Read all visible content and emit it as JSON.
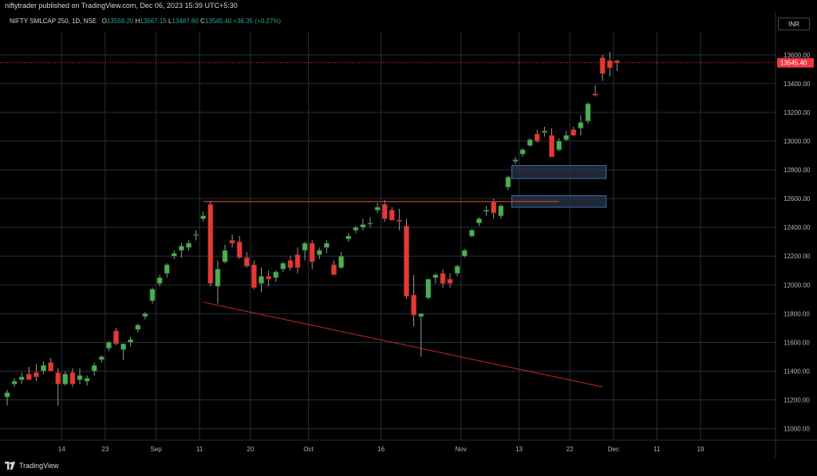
{
  "header": {
    "published": "niftytrader published on TradingView.com, Dec 06, 2023 15:39 UTC+5:30"
  },
  "legend": {
    "symbol": "NIFTY SMLCAP 250, 1D, NSE",
    "open_label": "O",
    "open": "13559.20",
    "high_label": "H",
    "high": "13567.15",
    "low_label": "L",
    "low": "13487.60",
    "close_label": "C",
    "close": "13545.40",
    "change": "+36.35 (+0.27%)"
  },
  "currency": "INR",
  "brand": {
    "name": "TradingView",
    "icon": "tradingview-logo-icon"
  },
  "colors": {
    "up": "#26a69a",
    "up_body": "#4caf50",
    "down": "#ef5350",
    "down_body": "#e53935",
    "grid": "#2a2e39",
    "trendline": "#c62828",
    "zone_fill": "#2a3446",
    "zone_border": "#3d6fb6",
    "last_price": "#f23645"
  },
  "chart_data": {
    "type": "candlestick",
    "title": "",
    "ylim": [
      10920,
      13760
    ],
    "y_ticks": [
      11000,
      11200,
      11400,
      11600,
      11800,
      12000,
      12200,
      12400,
      12600,
      12800,
      13000,
      13200,
      13400,
      13600
    ],
    "y_tick_labels": [
      "11000.00",
      "11200.00",
      "11400.00",
      "11600.00",
      "11800.00",
      "12000.00",
      "12200.00",
      "12400.00",
      "12600.00",
      "12800.00",
      "13000.00",
      "13200.00",
      "13400.00",
      "13600.00"
    ],
    "x_tick_labels": [
      {
        "label": "14",
        "index": 7.5
      },
      {
        "label": "23",
        "index": 13.5
      },
      {
        "label": "Sep",
        "index": 20.5
      },
      {
        "label": "11",
        "index": 26.5
      },
      {
        "label": "20",
        "index": 33.5
      },
      {
        "label": "Oct",
        "index": 41.5
      },
      {
        "label": "16",
        "index": 51.5
      },
      {
        "label": "Nov",
        "index": 62.5
      },
      {
        "label": "13",
        "index": 70.5
      },
      {
        "label": "22",
        "index": 77.5
      },
      {
        "label": "Dec",
        "index": 83.5
      },
      {
        "label": "11",
        "index": 89.5
      },
      {
        "label": "19",
        "index": 95.5
      }
    ],
    "grid": true,
    "last_price": 13545.4,
    "last_price_label": "13545.40",
    "candles": [
      [
        11220,
        11270,
        11160,
        11250
      ],
      [
        11310,
        11350,
        11290,
        11330
      ],
      [
        11340,
        11390,
        11310,
        11360
      ],
      [
        11380,
        11430,
        11360,
        11340
      ],
      [
        11390,
        11450,
        11330,
        11360
      ],
      [
        11400,
        11470,
        11380,
        11440
      ],
      [
        11460,
        11490,
        11420,
        11400
      ],
      [
        11390,
        11420,
        11160,
        11310
      ],
      [
        11310,
        11400,
        11300,
        11380
      ],
      [
        11390,
        11420,
        11290,
        11310
      ],
      [
        11340,
        11420,
        11310,
        11370
      ],
      [
        11330,
        11370,
        11300,
        11350
      ],
      [
        11400,
        11460,
        11370,
        11440
      ],
      [
        11480,
        11510,
        11460,
        11500
      ],
      [
        11560,
        11610,
        11540,
        11600
      ],
      [
        11680,
        11700,
        11580,
        11590
      ],
      [
        11550,
        11580,
        11480,
        11590
      ],
      [
        11600,
        11640,
        11570,
        11620
      ],
      [
        11690,
        11730,
        11670,
        11720
      ],
      [
        11780,
        11810,
        11760,
        11800
      ],
      [
        11890,
        11980,
        11870,
        11970
      ],
      [
        12010,
        12070,
        11990,
        12050
      ],
      [
        12080,
        12150,
        12050,
        12140
      ],
      [
        12200,
        12240,
        12180,
        12220
      ],
      [
        12240,
        12290,
        12190,
        12270
      ],
      [
        12260,
        12310,
        12240,
        12290
      ],
      [
        12350,
        12380,
        12310,
        12350
      ],
      [
        12460,
        12510,
        12440,
        12480
      ],
      [
        12560,
        12580,
        11990,
        12010
      ],
      [
        11990,
        12170,
        11870,
        12110
      ],
      [
        12160,
        12280,
        12150,
        12240
      ],
      [
        12310,
        12350,
        12260,
        12290
      ],
      [
        12300,
        12340,
        12180,
        12190
      ],
      [
        12190,
        12230,
        12120,
        12130
      ],
      [
        12140,
        12170,
        11970,
        11980
      ],
      [
        12010,
        12120,
        11950,
        12060
      ],
      [
        12060,
        12100,
        11990,
        12040
      ],
      [
        12050,
        12100,
        12020,
        12090
      ],
      [
        12110,
        12160,
        12090,
        12150
      ],
      [
        12170,
        12200,
        12100,
        12120
      ],
      [
        12210,
        12260,
        12080,
        12120
      ],
      [
        12240,
        12300,
        12170,
        12290
      ],
      [
        12290,
        12310,
        12110,
        12160
      ],
      [
        12210,
        12260,
        12180,
        12240
      ],
      [
        12260,
        12310,
        12220,
        12290
      ],
      [
        12140,
        12170,
        12080,
        12070
      ],
      [
        12120,
        12230,
        12110,
        12200
      ],
      [
        12320,
        12360,
        12300,
        12340
      ],
      [
        12380,
        12410,
        12360,
        12400
      ],
      [
        12400,
        12460,
        12380,
        12420
      ],
      [
        12430,
        12470,
        12400,
        12430
      ],
      [
        12520,
        12570,
        12500,
        12540
      ],
      [
        12560,
        12590,
        12440,
        12460
      ],
      [
        12520,
        12540,
        12470,
        12450
      ],
      [
        12450,
        12530,
        12380,
        12440
      ],
      [
        12410,
        12460,
        11900,
        11920
      ],
      [
        11930,
        12070,
        11710,
        11790
      ],
      [
        11780,
        11800,
        11500,
        11800
      ],
      [
        11910,
        12030,
        11900,
        12040
      ],
      [
        12050,
        12080,
        12010,
        12070
      ],
      [
        12080,
        12110,
        11980,
        12010
      ],
      [
        12040,
        12080,
        11980,
        12010
      ],
      [
        12080,
        12140,
        12060,
        12130
      ],
      [
        12200,
        12250,
        12190,
        12240
      ],
      [
        12340,
        12390,
        12330,
        12380
      ],
      [
        12430,
        12470,
        12410,
        12460
      ],
      [
        12510,
        12550,
        12480,
        12520
      ],
      [
        12580,
        12600,
        12460,
        12500
      ],
      [
        12480,
        12560,
        12460,
        12550
      ],
      [
        12680,
        12760,
        12660,
        12750
      ],
      [
        12860,
        12890,
        12840,
        12870
      ],
      [
        12910,
        12950,
        12890,
        12940
      ],
      [
        12970,
        13020,
        12960,
        13010
      ],
      [
        13050,
        13080,
        12990,
        13000
      ],
      [
        13060,
        13100,
        13030,
        13070
      ],
      [
        13040,
        13090,
        12900,
        12890
      ],
      [
        12940,
        13020,
        12930,
        13000
      ],
      [
        13010,
        13070,
        13000,
        13040
      ],
      [
        13080,
        13100,
        13040,
        13040
      ],
      [
        13090,
        13180,
        13040,
        13130
      ],
      [
        13140,
        13270,
        13120,
        13260
      ],
      [
        13330,
        13390,
        13310,
        13320
      ],
      [
        13580,
        13600,
        13420,
        13470
      ],
      [
        13560,
        13620,
        13450,
        13510
      ],
      [
        13559.2,
        13567.15,
        13487.6,
        13545.4
      ]
    ],
    "annotations": {
      "resistance_line": {
        "from_index": 27,
        "to_index": 76,
        "price": 12580
      },
      "trendline": {
        "from_index": 27,
        "from_price": 11880,
        "to_index": 82,
        "to_price": 11290
      },
      "zones": [
        {
          "from_index": 69.5,
          "to_index": 82.5,
          "low": 12740,
          "high": 12830
        },
        {
          "from_index": 69.5,
          "to_index": 82.5,
          "low": 12540,
          "high": 12620
        }
      ]
    }
  }
}
